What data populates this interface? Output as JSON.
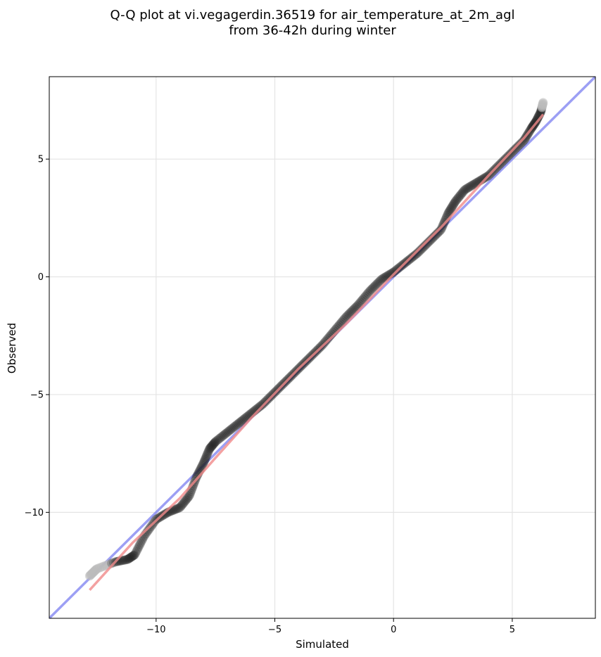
{
  "chart_data": {
    "type": "scatter",
    "title": "Q-Q plot at vi.vegagerdin.36519 for air_temperature_at_2m_agl",
    "subtitle": "from 36-42h during winter",
    "xlabel": "Simulated",
    "ylabel": "Observed",
    "xlim": [
      -14.5,
      8.5
    ],
    "ylim": [
      -14.5,
      8.5
    ],
    "xticks": [
      -10,
      -5,
      0,
      5
    ],
    "yticks": [
      -10,
      -5,
      0,
      5
    ],
    "xtick_labels": [
      "−10",
      "−5",
      "0",
      "5"
    ],
    "ytick_labels": [
      "−10",
      "−5",
      "0",
      "5"
    ],
    "grid": true,
    "reference_line": {
      "kind": "identity",
      "color": "#7b7ff0"
    },
    "fit_line": {
      "color": "#f08a8a",
      "x": [
        -12.8,
        -11,
        -9,
        -7.6,
        -6,
        -4,
        -2,
        0,
        2,
        4,
        5.5,
        6.3
      ],
      "y": [
        -13.3,
        -11.3,
        -9.4,
        -7.8,
        -6.0,
        -3.9,
        -2.0,
        0.1,
        2.1,
        4.3,
        5.9,
        6.9
      ]
    },
    "points": {
      "color": "#222222",
      "tail_color": "#bbbbbb",
      "knots_x": [
        -12.8,
        -12.5,
        -11.7,
        -11.2,
        -10.9,
        -10.5,
        -10.0,
        -9.5,
        -9.0,
        -8.6,
        -8.3,
        -8.0,
        -7.75,
        -7.5,
        -7.0,
        -6.5,
        -6.0,
        -5.5,
        -5.0,
        -4.5,
        -4.0,
        -3.5,
        -3.0,
        -2.5,
        -2.0,
        -1.5,
        -1.0,
        -0.5,
        0.0,
        0.5,
        1.0,
        1.5,
        2.0,
        2.3,
        2.6,
        3.0,
        3.5,
        4.0,
        4.5,
        5.0,
        5.5,
        5.8,
        6.0,
        6.2,
        6.3
      ],
      "knots_y": [
        -12.7,
        -12.4,
        -12.1,
        -12.0,
        -11.8,
        -11.0,
        -10.3,
        -10.0,
        -9.8,
        -9.3,
        -8.5,
        -7.9,
        -7.3,
        -7.0,
        -6.6,
        -6.2,
        -5.8,
        -5.4,
        -4.9,
        -4.4,
        -3.9,
        -3.4,
        -2.9,
        -2.3,
        -1.7,
        -1.2,
        -0.6,
        -0.1,
        0.2,
        0.6,
        1.0,
        1.5,
        2.0,
        2.7,
        3.2,
        3.7,
        4.0,
        4.3,
        4.8,
        5.3,
        5.8,
        6.3,
        6.6,
        7.0,
        7.4
      ],
      "count": 420
    }
  }
}
